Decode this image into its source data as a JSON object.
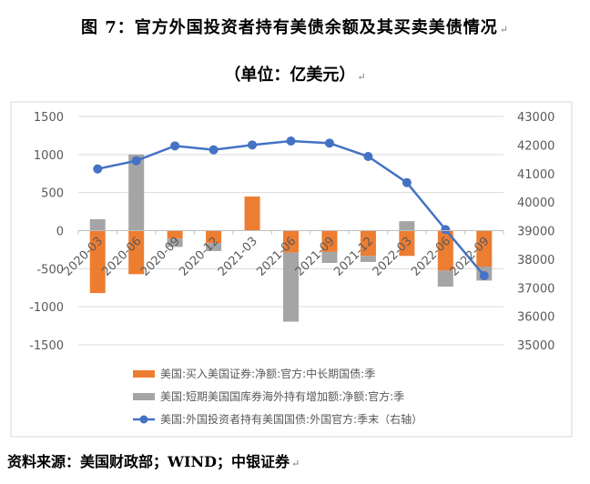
{
  "title": "图 7：官方外国投资者持有美债余额及其买卖美债情况",
  "subtitle": "（单位：亿美元）",
  "footer": "资料来源：美国财政部；WIND；中银证券",
  "chart_data": {
    "type": "bar+line",
    "categories": [
      "2020-03",
      "2020-06",
      "2020-09",
      "2020-12",
      "2021-03",
      "2021-06",
      "2021-09",
      "2021-12",
      "2022-03",
      "2022-06",
      "2022-09"
    ],
    "left_axis": {
      "min": -1500,
      "max": 1500,
      "ticks": [
        "1500",
        "1000",
        "500",
        "0",
        "-500",
        "-1000",
        "-1500"
      ]
    },
    "right_axis": {
      "min": 35000,
      "max": 43000,
      "ticks": [
        "43000",
        "42000",
        "41000",
        "40000",
        "39000",
        "38000",
        "37000",
        "36000",
        "35000"
      ]
    },
    "grid": true,
    "legend_position": "bottom",
    "series": [
      {
        "name": "美国:买入美国证券:净额:官方:中长期国债:季",
        "type": "bar",
        "color": "#ED7D31",
        "axis": "left",
        "stacked": true,
        "values": [
          -820,
          -572,
          -104,
          -164,
          448,
          -288,
          -280,
          -332,
          -332,
          -524,
          -472
        ]
      },
      {
        "name": "美国:短期美国国库券海外持有增加额:净额:官方:季",
        "type": "bar",
        "color": "#A5A5A5",
        "axis": "left",
        "stacked": true,
        "values": [
          150,
          1000,
          -110,
          -104,
          0,
          -908,
          -144,
          -80,
          124,
          -212,
          -184
        ]
      },
      {
        "name": "美国:外国投资者持有美国国债:外国官方:季末（右轴）",
        "type": "line",
        "color": "#4472C4",
        "axis": "right",
        "values": [
          41162,
          41448,
          41969,
          41831,
          42001,
          42139,
          42065,
          41597,
          40683,
          39036,
          37421
        ]
      }
    ]
  }
}
